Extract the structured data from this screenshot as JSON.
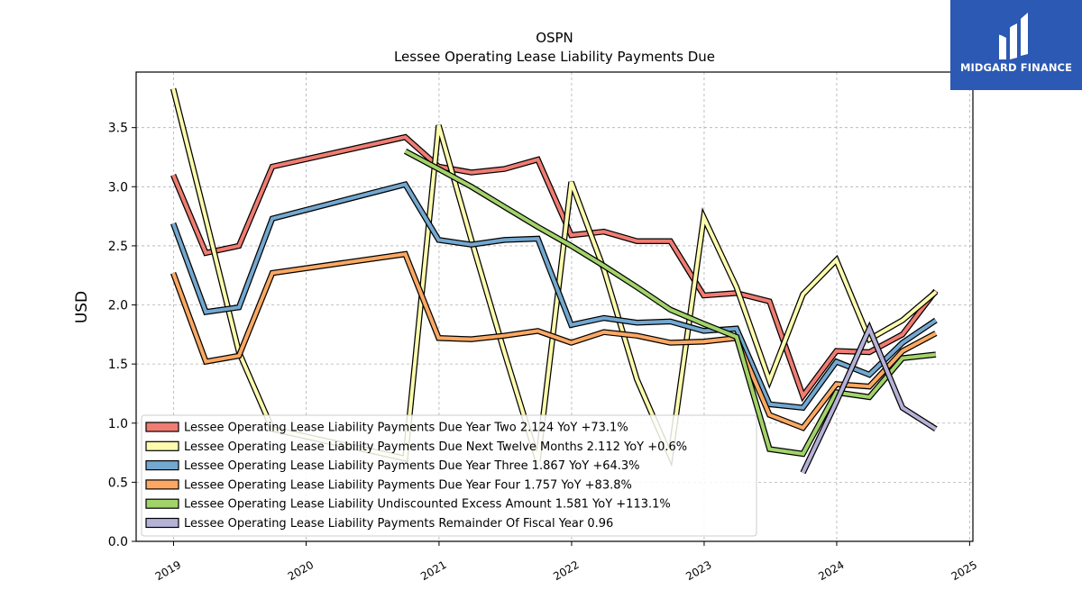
{
  "chart_data": {
    "type": "line",
    "title": "OSPN",
    "subtitle": "Lessee Operating Lease Liability Payments Due",
    "xlabel": "",
    "ylabel": "USD",
    "x_ticks": [
      "2019",
      "2020",
      "2021",
      "2022",
      "2023",
      "2024",
      "2025"
    ],
    "y_ticks": [
      "0.0",
      "0.5",
      "1.0",
      "1.5",
      "2.0",
      "2.5",
      "3.0",
      "3.5"
    ],
    "xlim": [
      "2018-09-20",
      "2025-01-10"
    ],
    "ylim": [
      0,
      3.97
    ],
    "grid": true,
    "legend_position": "lower-left",
    "series": [
      {
        "name": "Lessee Operating Lease Liability Payments Due Year Two  2.124 YoY +73.1%",
        "color": "#f07c72",
        "points": [
          [
            "2018-12-31",
            3.1
          ],
          [
            "2019-03-31",
            2.44
          ],
          [
            "2019-06-30",
            2.5
          ],
          [
            "2019-09-30",
            3.17
          ],
          [
            "2020-09-30",
            3.42
          ],
          [
            "2020-12-31",
            3.17
          ],
          [
            "2021-03-31",
            3.12
          ],
          [
            "2021-06-30",
            3.15
          ],
          [
            "2021-09-30",
            3.23
          ],
          [
            "2021-12-31",
            2.59
          ],
          [
            "2022-03-31",
            2.62
          ],
          [
            "2022-06-30",
            2.54
          ],
          [
            "2022-09-30",
            2.54
          ],
          [
            "2022-12-31",
            2.08
          ],
          [
            "2023-03-31",
            2.1
          ],
          [
            "2023-06-30",
            2.03
          ],
          [
            "2023-09-30",
            1.23
          ],
          [
            "2023-12-31",
            1.61
          ],
          [
            "2024-03-31",
            1.6
          ],
          [
            "2024-06-30",
            1.75
          ],
          [
            "2024-09-30",
            2.12
          ]
        ]
      },
      {
        "name": "Lessee Operating Lease Liability Payments Due Next Twelve Months  2.112 YoY +0.6%",
        "color": "#fdfcae",
        "points": [
          [
            "2018-12-31",
            3.83
          ],
          [
            "2019-03-31",
            2.73
          ],
          [
            "2019-06-30",
            1.6
          ],
          [
            "2019-09-30",
            0.95
          ],
          [
            "2020-09-30",
            0.7
          ],
          [
            "2020-12-31",
            3.52
          ],
          [
            "2021-03-31",
            2.55
          ],
          [
            "2021-06-30",
            1.6
          ],
          [
            "2021-09-30",
            0.68
          ],
          [
            "2021-12-31",
            3.04
          ],
          [
            "2022-03-31",
            2.3
          ],
          [
            "2022-06-30",
            1.37
          ],
          [
            "2022-09-30",
            0.72
          ],
          [
            "2022-12-31",
            2.74
          ],
          [
            "2023-03-31",
            2.15
          ],
          [
            "2023-06-30",
            1.36
          ],
          [
            "2023-09-30",
            2.09
          ],
          [
            "2023-12-31",
            2.38
          ],
          [
            "2024-03-31",
            1.71
          ],
          [
            "2024-06-30",
            1.87
          ],
          [
            "2024-09-30",
            2.11
          ]
        ]
      },
      {
        "name": "Lessee Operating Lease Liability Payments Due Year Three  1.867 YoY +64.3%",
        "color": "#73a8d0",
        "points": [
          [
            "2018-12-31",
            2.69
          ],
          [
            "2019-03-31",
            1.94
          ],
          [
            "2019-06-30",
            1.98
          ],
          [
            "2019-09-30",
            2.73
          ],
          [
            "2020-09-30",
            3.02
          ],
          [
            "2020-12-31",
            2.55
          ],
          [
            "2021-03-31",
            2.51
          ],
          [
            "2021-06-30",
            2.55
          ],
          [
            "2021-09-30",
            2.56
          ],
          [
            "2021-12-31",
            1.83
          ],
          [
            "2022-03-31",
            1.89
          ],
          [
            "2022-06-30",
            1.85
          ],
          [
            "2022-09-30",
            1.86
          ],
          [
            "2022-12-31",
            1.78
          ],
          [
            "2023-03-31",
            1.8
          ],
          [
            "2023-06-30",
            1.16
          ],
          [
            "2023-09-30",
            1.13
          ],
          [
            "2023-12-31",
            1.52
          ],
          [
            "2024-03-31",
            1.41
          ],
          [
            "2024-06-30",
            1.68
          ],
          [
            "2024-09-30",
            1.87
          ]
        ]
      },
      {
        "name": "Lessee Operating Lease Liability Payments Due Year Four  1.757 YoY +83.8%",
        "color": "#fca862",
        "points": [
          [
            "2018-12-31",
            2.27
          ],
          [
            "2019-03-31",
            1.52
          ],
          [
            "2019-06-30",
            1.57
          ],
          [
            "2019-09-30",
            2.27
          ],
          [
            "2020-09-30",
            2.43
          ],
          [
            "2020-12-31",
            1.72
          ],
          [
            "2021-03-31",
            1.71
          ],
          [
            "2021-06-30",
            1.74
          ],
          [
            "2021-09-30",
            1.78
          ],
          [
            "2021-12-31",
            1.68
          ],
          [
            "2022-03-31",
            1.77
          ],
          [
            "2022-06-30",
            1.74
          ],
          [
            "2022-09-30",
            1.68
          ],
          [
            "2022-12-31",
            1.69
          ],
          [
            "2023-03-31",
            1.72
          ],
          [
            "2023-06-30",
            1.07
          ],
          [
            "2023-09-30",
            0.96
          ],
          [
            "2023-12-31",
            1.33
          ],
          [
            "2024-03-31",
            1.31
          ],
          [
            "2024-06-30",
            1.61
          ],
          [
            "2024-09-30",
            1.76
          ]
        ]
      },
      {
        "name": "Lessee Operating Lease Liability Undiscounted Excess Amount  1.581 YoY +113.1%",
        "color": "#a2d36a",
        "points": [
          [
            "2020-09-30",
            3.3
          ],
          [
            "2020-12-31",
            3.15
          ],
          [
            "2021-03-31",
            3.0
          ],
          [
            "2021-06-30",
            2.83
          ],
          [
            "2021-09-30",
            2.66
          ],
          [
            "2021-12-31",
            2.5
          ],
          [
            "2022-03-31",
            2.33
          ],
          [
            "2022-06-30",
            2.15
          ],
          [
            "2022-09-30",
            1.96
          ],
          [
            "2022-12-31",
            1.84
          ],
          [
            "2023-03-31",
            1.73
          ],
          [
            "2023-06-30",
            0.78
          ],
          [
            "2023-09-30",
            0.74
          ],
          [
            "2023-12-31",
            1.26
          ],
          [
            "2024-03-31",
            1.22
          ],
          [
            "2024-06-30",
            1.55
          ],
          [
            "2024-09-30",
            1.58
          ]
        ]
      },
      {
        "name": "Lessee Operating Lease Liability Payments Remainder Of Fiscal Year  0.96",
        "color": "#b5b1d7",
        "points": [
          [
            "2023-09-30",
            0.58
          ],
          [
            "2023-12-31",
            1.18
          ],
          [
            "2024-03-31",
            1.8
          ],
          [
            "2024-06-30",
            1.13
          ],
          [
            "2024-09-30",
            0.95
          ]
        ]
      }
    ]
  },
  "logo": {
    "text": "MIDGARD FINANCE",
    "color": "#2b59b3"
  }
}
